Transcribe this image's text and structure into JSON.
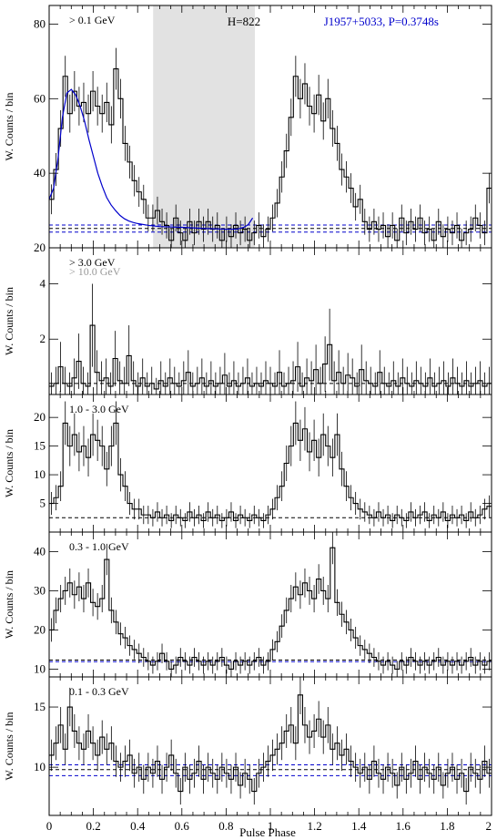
{
  "figure": {
    "x_axis_label": "Pulse Phase",
    "y_axis_label": "W. Counts / bin",
    "pulsar_label": "J1957+5033, P=0.3748s",
    "h_label": "H=822",
    "x_ticks": [
      "0",
      "0.2",
      "0.4",
      "0.6",
      "0.8",
      "1",
      "1.2",
      "1.4",
      "1.6",
      "1.8",
      "2"
    ],
    "colors": {
      "histogram": "#000000",
      "fit": "#0000cc",
      "shade": "#e2e2e2",
      "secondary_text": "#999999"
    }
  },
  "chart_data": [
    {
      "type": "histogram",
      "label": "> 0.1 GeV",
      "xlim": [
        0,
        2
      ],
      "ylim": [
        20,
        85
      ],
      "yticks": [
        20,
        40,
        60,
        80
      ],
      "shaded_phase": [
        0.47,
        0.93
      ],
      "background_levels": [
        24.2,
        25.2,
        26.1
      ],
      "fit_curve": [
        [
          0,
          33
        ],
        [
          0.02,
          36
        ],
        [
          0.04,
          44
        ],
        [
          0.06,
          55
        ],
        [
          0.08,
          61.5
        ],
        [
          0.1,
          62.5
        ],
        [
          0.12,
          61
        ],
        [
          0.14,
          58
        ],
        [
          0.16,
          54
        ],
        [
          0.18,
          49
        ],
        [
          0.2,
          44.5
        ],
        [
          0.22,
          40
        ],
        [
          0.24,
          36.5
        ],
        [
          0.26,
          33.5
        ],
        [
          0.28,
          31.5
        ],
        [
          0.3,
          30
        ],
        [
          0.32,
          28.7
        ],
        [
          0.34,
          27.8
        ],
        [
          0.36,
          27.2
        ],
        [
          0.38,
          26.8
        ],
        [
          0.4,
          26.5
        ],
        [
          0.45,
          26
        ],
        [
          0.5,
          25.7
        ],
        [
          0.6,
          25.5
        ],
        [
          0.7,
          25.2
        ],
        [
          0.8,
          25
        ],
        [
          0.85,
          25
        ],
        [
          0.88,
          25.5
        ],
        [
          0.9,
          26.2
        ],
        [
          0.92,
          28
        ]
      ],
      "values": [
        33,
        41,
        52,
        66,
        56,
        62,
        58,
        59,
        56,
        62,
        58,
        56,
        59,
        53,
        68,
        60,
        48,
        43,
        38,
        35,
        33,
        28,
        28,
        30,
        27,
        26,
        22,
        28,
        24,
        22,
        27,
        24,
        27,
        25,
        27,
        25,
        26,
        22,
        25,
        23,
        26,
        24,
        25,
        22,
        24,
        26,
        23,
        25,
        28,
        32,
        39,
        46,
        55,
        66,
        60,
        64,
        58,
        56,
        61,
        54,
        60,
        52,
        48,
        41,
        39,
        36,
        31,
        33,
        27,
        25,
        27,
        25,
        26,
        23,
        26,
        22,
        28,
        24,
        27,
        25,
        28,
        24,
        25,
        22,
        27,
        23,
        25,
        24,
        26,
        22,
        24,
        25,
        28,
        26,
        24,
        36
      ],
      "errors": [
        4,
        4.4,
        4.9,
        5.5,
        5.1,
        5.4,
        5.2,
        5.3,
        5.1,
        5.4,
        5.2,
        5.1,
        5.3,
        5,
        5.6,
        5.3,
        4.7,
        4.4,
        4.2,
        4,
        3.9,
        3.6,
        3.6,
        3.7,
        3.5,
        3.5,
        3.2,
        3.6,
        3.3,
        3.2,
        3.5,
        3.3,
        3.5,
        3.4,
        3.5,
        3.4,
        3.5,
        3.2,
        3.4,
        3.3,
        3.5,
        3.3,
        3.4,
        3.2,
        3.3,
        3.5,
        3.3,
        3.4,
        3.6,
        3.8,
        4.2,
        4.6,
        5,
        5.5,
        5.3,
        5.5,
        5.2,
        5.1,
        5.4,
        5,
        5.3,
        4.9,
        4.7,
        4.3,
        4.2,
        4,
        3.7,
        3.9,
        3.5,
        3.4,
        3.5,
        3.4,
        3.5,
        3.3,
        3.5,
        3.2,
        3.6,
        3.3,
        3.5,
        3.4,
        3.6,
        3.3,
        3.4,
        3.2,
        3.5,
        3.3,
        3.4,
        3.3,
        3.5,
        3.2,
        3.3,
        3.4,
        3.6,
        3.5,
        3.3,
        4.1
      ]
    },
    {
      "type": "histogram",
      "label": "> 3.0 GeV",
      "label_secondary": "> 10.0 GeV",
      "xlim": [
        0,
        2
      ],
      "ylim": [
        0,
        5.3
      ],
      "yticks": [
        2,
        4
      ],
      "background_levels": [
        0.4
      ],
      "values": [
        0.3,
        0.4,
        1,
        0.4,
        0.3,
        0.6,
        1.2,
        0.4,
        0.3,
        2.5,
        0.8,
        0.5,
        0.6,
        0.3,
        1.3,
        0.5,
        0.4,
        1.4,
        0.5,
        0.3,
        0.6,
        0.3,
        0.4,
        0.2,
        0.5,
        0.3,
        0.6,
        0.4,
        0.3,
        0.5,
        0.8,
        0.3,
        0.4,
        0.6,
        0.3,
        0.5,
        0.3,
        0.4,
        0.7,
        0.3,
        0.5,
        0.3,
        0.4,
        0.6,
        0.3,
        0.4,
        0.3,
        0.5,
        0.4,
        0.3,
        0.8,
        0.3,
        0.4,
        0.5,
        1,
        0.3,
        0.6,
        0.5,
        0.9,
        0.4,
        1.1,
        1.8,
        0.5,
        0.8,
        0.4,
        0.7,
        0.6,
        0.3,
        0.9,
        0.5,
        0.4,
        0.3,
        0.8,
        0.4,
        0.3,
        0.5,
        0.3,
        0.6,
        0.4,
        0.3,
        0.5,
        0.4,
        0.3,
        0.6,
        0.3,
        0.4,
        0.5,
        0.3,
        0.6,
        0.4,
        0.3,
        0.5,
        0.3,
        0.4,
        0.5,
        0.3,
        0.4
      ],
      "errors": [
        0.5,
        0.6,
        0.9,
        0.6,
        0.5,
        0.7,
        1,
        0.6,
        0.5,
        1.5,
        0.8,
        0.7,
        0.7,
        0.5,
        1,
        0.7,
        0.6,
        1.1,
        0.7,
        0.5,
        0.7,
        0.5,
        0.6,
        0.4,
        0.7,
        0.5,
        0.7,
        0.6,
        0.5,
        0.7,
        0.8,
        0.5,
        0.6,
        0.7,
        0.5,
        0.7,
        0.5,
        0.6,
        0.8,
        0.5,
        0.7,
        0.5,
        0.6,
        0.7,
        0.5,
        0.6,
        0.5,
        0.7,
        0.6,
        0.5,
        0.8,
        0.5,
        0.6,
        0.7,
        0.9,
        0.5,
        0.7,
        0.7,
        0.9,
        0.6,
        1,
        1.3,
        0.7,
        0.8,
        0.6,
        0.8,
        0.7,
        0.5,
        0.9,
        0.7,
        0.6,
        0.5,
        0.8,
        0.6,
        0.5,
        0.7,
        0.5,
        0.7,
        0.6,
        0.5,
        0.7,
        0.6,
        0.5,
        0.7,
        0.5,
        0.6,
        0.7,
        0.5,
        0.7,
        0.6,
        0.5,
        0.7,
        0.5,
        0.6,
        0.7,
        0.5,
        0.6
      ]
    },
    {
      "type": "histogram",
      "label": "1.0 - 3.0 GeV",
      "xlim": [
        0,
        2
      ],
      "ylim": [
        0,
        24
      ],
      "yticks": [
        5,
        10,
        15,
        20
      ],
      "background_levels": [
        2.5
      ],
      "values": [
        5,
        6,
        8,
        19,
        15,
        17,
        14,
        15,
        13,
        17,
        16,
        15,
        11,
        15,
        19,
        10,
        8,
        5,
        4,
        4,
        3,
        3,
        2.5,
        3.5,
        2.5,
        3,
        2,
        3,
        2.5,
        2,
        3.5,
        2.5,
        3,
        2,
        3.5,
        2.5,
        3,
        2,
        2.5,
        3.5,
        2,
        3,
        2.5,
        2,
        3,
        2.5,
        2,
        3,
        4,
        6,
        8,
        12,
        15,
        19,
        16,
        18,
        14,
        16,
        13,
        17,
        15,
        13,
        17,
        11,
        8,
        6,
        5,
        4,
        3.5,
        3,
        2.5,
        3.5,
        2.5,
        3,
        2,
        3,
        2.5,
        2,
        3.5,
        2.5,
        3,
        3.5,
        2,
        3,
        2.5,
        3.5,
        2,
        3,
        2.5,
        3,
        2,
        3.5,
        2.5,
        3,
        4,
        4.5
      ],
      "errors": [
        2,
        2.2,
        2.6,
        3.8,
        3.5,
        3.7,
        3.4,
        3.5,
        3.3,
        3.7,
        3.6,
        3.5,
        3,
        3.5,
        3.8,
        2.9,
        2.6,
        2,
        1.8,
        1.8,
        1.6,
        1.6,
        1.5,
        1.7,
        1.5,
        1.6,
        1.3,
        1.6,
        1.5,
        1.3,
        1.7,
        1.5,
        1.6,
        1.3,
        1.7,
        1.5,
        1.6,
        1.3,
        1.5,
        1.7,
        1.3,
        1.6,
        1.5,
        1.3,
        1.6,
        1.5,
        1.3,
        1.6,
        1.8,
        2.2,
        2.6,
        3.1,
        3.5,
        3.8,
        3.6,
        3.8,
        3.4,
        3.6,
        3.3,
        3.7,
        3.5,
        3.3,
        3.7,
        3,
        2.6,
        2.2,
        2,
        1.8,
        1.7,
        1.6,
        1.5,
        1.7,
        1.5,
        1.6,
        1.3,
        1.6,
        1.5,
        1.3,
        1.7,
        1.5,
        1.6,
        1.7,
        1.3,
        1.6,
        1.5,
        1.7,
        1.3,
        1.6,
        1.5,
        1.6,
        1.3,
        1.7,
        1.5,
        1.6,
        1.8,
        1.9
      ]
    },
    {
      "type": "histogram",
      "label": "0.3 - 1.0 GeV",
      "xlim": [
        0,
        2
      ],
      "ylim": [
        8,
        45
      ],
      "yticks": [
        10,
        20,
        30,
        40
      ],
      "background_levels": [
        11.9,
        12.3
      ],
      "values": [
        20,
        25,
        28,
        30,
        32,
        29,
        31,
        28,
        32,
        27,
        26,
        28,
        38,
        25,
        22,
        19,
        18,
        16,
        15,
        14,
        13,
        12,
        11,
        12,
        14,
        12,
        10,
        11,
        13,
        12,
        11,
        13,
        12,
        11,
        12,
        11,
        12,
        13,
        11,
        10,
        12,
        11,
        12,
        11,
        12,
        13,
        11,
        12,
        15,
        17,
        21,
        25,
        28,
        31,
        29,
        32,
        30,
        28,
        33,
        30,
        28,
        41,
        27,
        24,
        22,
        20,
        18,
        16,
        15,
        14,
        13,
        12,
        11,
        12,
        11,
        10,
        12,
        11,
        13,
        12,
        11,
        12,
        11,
        12,
        13,
        11,
        12,
        11,
        12,
        11,
        12,
        13,
        11,
        12,
        11,
        12
      ],
      "errors": [
        3,
        3.3,
        3.5,
        3.6,
        3.7,
        3.6,
        3.7,
        3.5,
        3.7,
        3.5,
        3.4,
        3.5,
        4,
        3.3,
        3.1,
        2.9,
        2.8,
        2.6,
        2.5,
        2.5,
        2.4,
        2.3,
        2.2,
        2.3,
        2.5,
        2.3,
        2.1,
        2.2,
        2.4,
        2.3,
        2.2,
        2.4,
        2.3,
        2.2,
        2.3,
        2.2,
        2.3,
        2.4,
        2.2,
        2.1,
        2.3,
        2.2,
        2.3,
        2.2,
        2.3,
        2.4,
        2.2,
        2.3,
        2.6,
        2.7,
        3,
        3.3,
        3.5,
        3.7,
        3.6,
        3.7,
        3.6,
        3.5,
        3.8,
        3.6,
        3.5,
        4.2,
        3.4,
        3.2,
        3.1,
        2.9,
        2.8,
        2.6,
        2.5,
        2.5,
        2.4,
        2.3,
        2.2,
        2.3,
        2.2,
        2.1,
        2.3,
        2.2,
        2.4,
        2.3,
        2.2,
        2.3,
        2.2,
        2.3,
        2.4,
        2.2,
        2.3,
        2.2,
        2.3,
        2.2,
        2.3,
        2.4,
        2.2,
        2.3,
        2.2,
        2.3
      ]
    },
    {
      "type": "histogram",
      "label": "0.1 - 0.3 GeV",
      "xlim": [
        0,
        2
      ],
      "ylim": [
        6,
        17.5
      ],
      "yticks": [
        10,
        15
      ],
      "background_levels": [
        9.3,
        9.8,
        10.2
      ],
      "values": [
        11,
        12,
        13.5,
        11.5,
        15,
        13,
        12,
        11.5,
        13,
        12,
        11,
        12.5,
        11.5,
        12,
        10.5,
        10,
        10.5,
        11,
        9.5,
        10,
        9,
        10,
        9.5,
        10.5,
        9,
        10,
        11,
        9.5,
        8,
        10,
        9,
        9.5,
        10.5,
        9,
        10,
        9.5,
        9,
        10,
        9.5,
        9,
        10,
        8.5,
        9.5,
        9,
        8,
        9.5,
        10,
        10.5,
        11,
        11.5,
        12,
        13,
        13.5,
        12,
        16,
        13.5,
        12.5,
        13,
        14,
        12.5,
        13.5,
        11.5,
        12,
        11,
        11.5,
        10.5,
        10,
        9.5,
        10,
        9,
        10.5,
        9.5,
        9,
        10,
        9.5,
        8.5,
        10,
        9,
        9.5,
        10.5,
        9,
        10,
        9.5,
        9,
        10,
        8.5,
        9.5,
        10,
        9,
        9.5,
        8,
        10,
        9.5,
        9,
        10.5,
        9.5
      ],
      "errors": [
        1.3,
        1.4,
        1.5,
        1.3,
        1.6,
        1.4,
        1.4,
        1.3,
        1.4,
        1.4,
        1.3,
        1.4,
        1.3,
        1.4,
        1.3,
        1.2,
        1.3,
        1.3,
        1.2,
        1.2,
        1.2,
        1.2,
        1.2,
        1.3,
        1.2,
        1.2,
        1.3,
        1.2,
        1.1,
        1.2,
        1.2,
        1.2,
        1.3,
        1.2,
        1.2,
        1.2,
        1.2,
        1.2,
        1.2,
        1.2,
        1.2,
        1.1,
        1.2,
        1.2,
        1.1,
        1.2,
        1.2,
        1.3,
        1.3,
        1.3,
        1.4,
        1.4,
        1.5,
        1.4,
        1.6,
        1.5,
        1.4,
        1.4,
        1.5,
        1.4,
        1.5,
        1.3,
        1.4,
        1.3,
        1.3,
        1.3,
        1.2,
        1.2,
        1.2,
        1.2,
        1.3,
        1.2,
        1.2,
        1.2,
        1.2,
        1.1,
        1.2,
        1.2,
        1.2,
        1.3,
        1.2,
        1.2,
        1.2,
        1.2,
        1.2,
        1.1,
        1.2,
        1.2,
        1.2,
        1.2,
        1.1,
        1.2,
        1.2,
        1.2,
        1.3,
        1.2
      ]
    }
  ]
}
